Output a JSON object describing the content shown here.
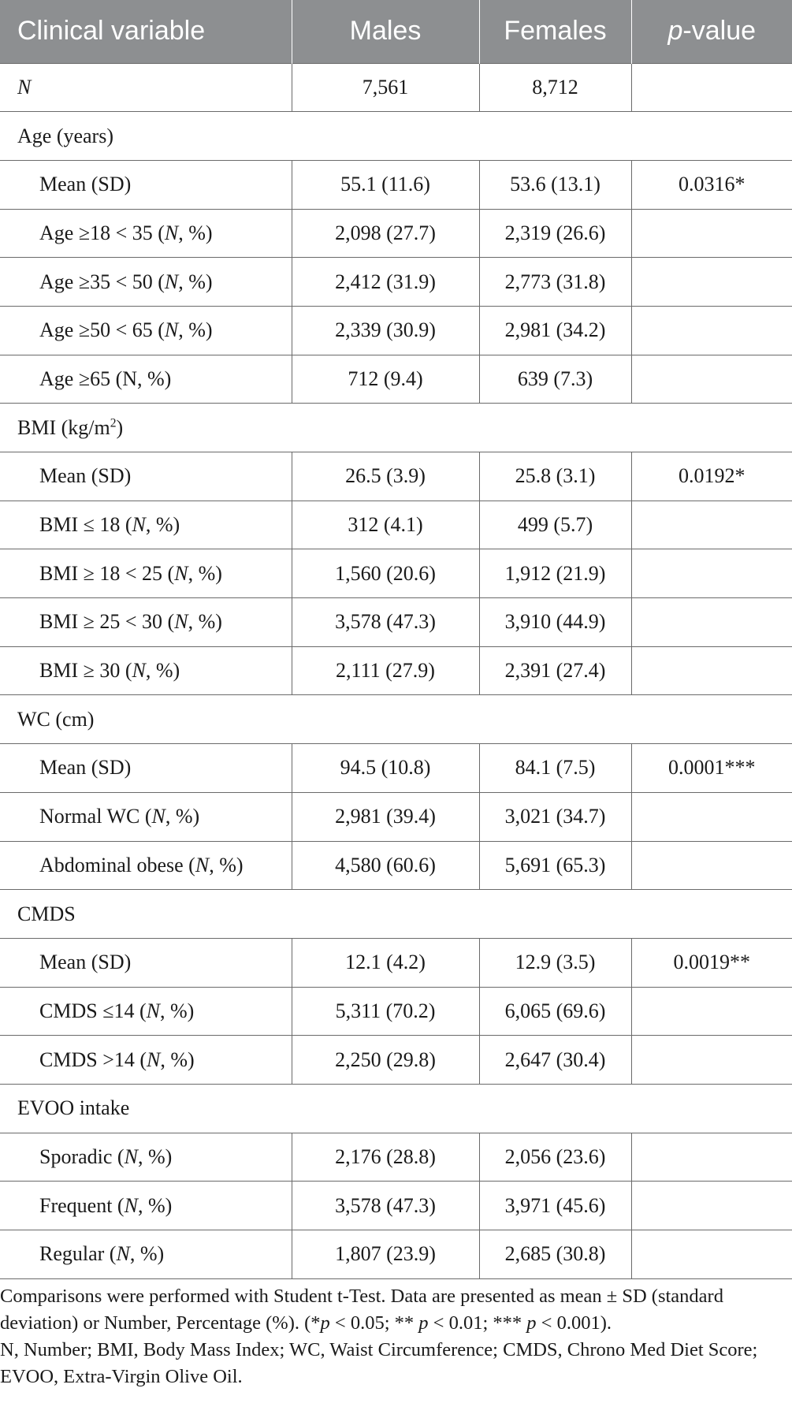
{
  "header": {
    "variable": "Clinical variable",
    "males": "Males",
    "females": "Females",
    "pvalue_italic": "p",
    "pvalue_rest": "-value"
  },
  "rows": {
    "n": {
      "label": "N",
      "males": "7,561",
      "females": "8,712"
    },
    "age": {
      "title": "Age (years)",
      "mean": {
        "label": "Mean (SD)",
        "males": "55.1 (11.6)",
        "females": "53.6 (13.1)",
        "p": "0.0316*"
      },
      "r1": {
        "label_pre": "Age ≥18 < 35 (",
        "label_it": "N",
        "label_post": ", %)",
        "males": "2,098 (27.7)",
        "females": "2,319 (26.6)"
      },
      "r2": {
        "label_pre": "Age ≥35 < 50 (",
        "label_it": "N",
        "label_post": ", %)",
        "males": "2,412 (31.9)",
        "females": "2,773 (31.8)"
      },
      "r3": {
        "label_pre": "Age ≥50 < 65 (",
        "label_it": "N",
        "label_post": ", %)",
        "males": "2,339 (30.9)",
        "females": "2,981 (34.2)"
      },
      "r4": {
        "label": "Age ≥65 (N, %)",
        "males": "712 (9.4)",
        "females": "639 (7.3)"
      }
    },
    "bmi": {
      "title_pre": "BMI (kg/m",
      "title_sup": "2",
      "title_post": ")",
      "mean": {
        "label": "Mean (SD)",
        "males": "26.5 (3.9)",
        "females": "25.8 (3.1)",
        "p": "0.0192*"
      },
      "r1": {
        "label_pre": "BMI ≤ 18 (",
        "label_it": "N",
        "label_post": ", %)",
        "males": "312 (4.1)",
        "females": "499 (5.7)"
      },
      "r2": {
        "label_pre": "BMI ≥ 18 < 25 (",
        "label_it": "N",
        "label_post": ", %)",
        "males": "1,560 (20.6)",
        "females": "1,912 (21.9)"
      },
      "r3": {
        "label_pre": "BMI ≥ 25 < 30 (",
        "label_it": "N",
        "label_post": ", %)",
        "males": "3,578 (47.3)",
        "females": "3,910 (44.9)"
      },
      "r4": {
        "label_pre": "BMI ≥ 30 (",
        "label_it": "N",
        "label_post": ", %)",
        "males": "2,111 (27.9)",
        "females": "2,391 (27.4)"
      }
    },
    "wc": {
      "title": "WC (cm)",
      "mean": {
        "label": "Mean (SD)",
        "males": "94.5 (10.8)",
        "females": "84.1 (7.5)",
        "p": "0.0001***"
      },
      "r1": {
        "label_pre": "Normal WC (",
        "label_it": "N",
        "label_post": ", %)",
        "males": "2,981 (39.4)",
        "females": "3,021 (34.7)"
      },
      "r2": {
        "label_pre": "Abdominal obese (",
        "label_it": "N",
        "label_post": ", %)",
        "males": "4,580 (60.6)",
        "females": "5,691 (65.3)"
      }
    },
    "cmds": {
      "title": "CMDS",
      "mean": {
        "label": "Mean (SD)",
        "males": "12.1 (4.2)",
        "females": "12.9 (3.5)",
        "p": "0.0019**"
      },
      "r1": {
        "label_pre": "CMDS ≤14 (",
        "label_it": "N",
        "label_post": ", %)",
        "males": "5,311 (70.2)",
        "females": "6,065 (69.6)"
      },
      "r2": {
        "label_pre": "CMDS >14 (",
        "label_it": "N",
        "label_post": ", %)",
        "males": "2,250 (29.8)",
        "females": "2,647 (30.4)"
      }
    },
    "evoo": {
      "title": "EVOO intake",
      "r1": {
        "label_pre": "Sporadic (",
        "label_it": "N",
        "label_post": ", %)",
        "males": "2,176 (28.8)",
        "females": "2,056 (23.6)"
      },
      "r2": {
        "label_pre": "Frequent (",
        "label_it": "N",
        "label_post": ", %)",
        "males": "3,578 (47.3)",
        "females": "3,971 (45.6)"
      },
      "r3": {
        "label_pre": "Regular (",
        "label_it": "N",
        "label_post": ", %)",
        "males": "1,807 (23.9)",
        "females": "2,685 (30.8)"
      }
    }
  },
  "footnotes": {
    "line1": "Comparisons were performed with Student t-Test. Data are presented as mean ± SD (standard deviation) or Number, Percentage (%). (",
    "s1": "*",
    "p1": "p",
    "s1b": " < 0.05; ** ",
    "p2": "p",
    "s2b": " < 0.01; *** ",
    "p3": "p",
    "s3b": " < 0.001).",
    "line2": "N, Number; BMI, Body Mass Index; WC, Waist Circumference; CMDS, Chrono Med Diet Score; EVOO, Extra-Virgin Olive Oil."
  }
}
